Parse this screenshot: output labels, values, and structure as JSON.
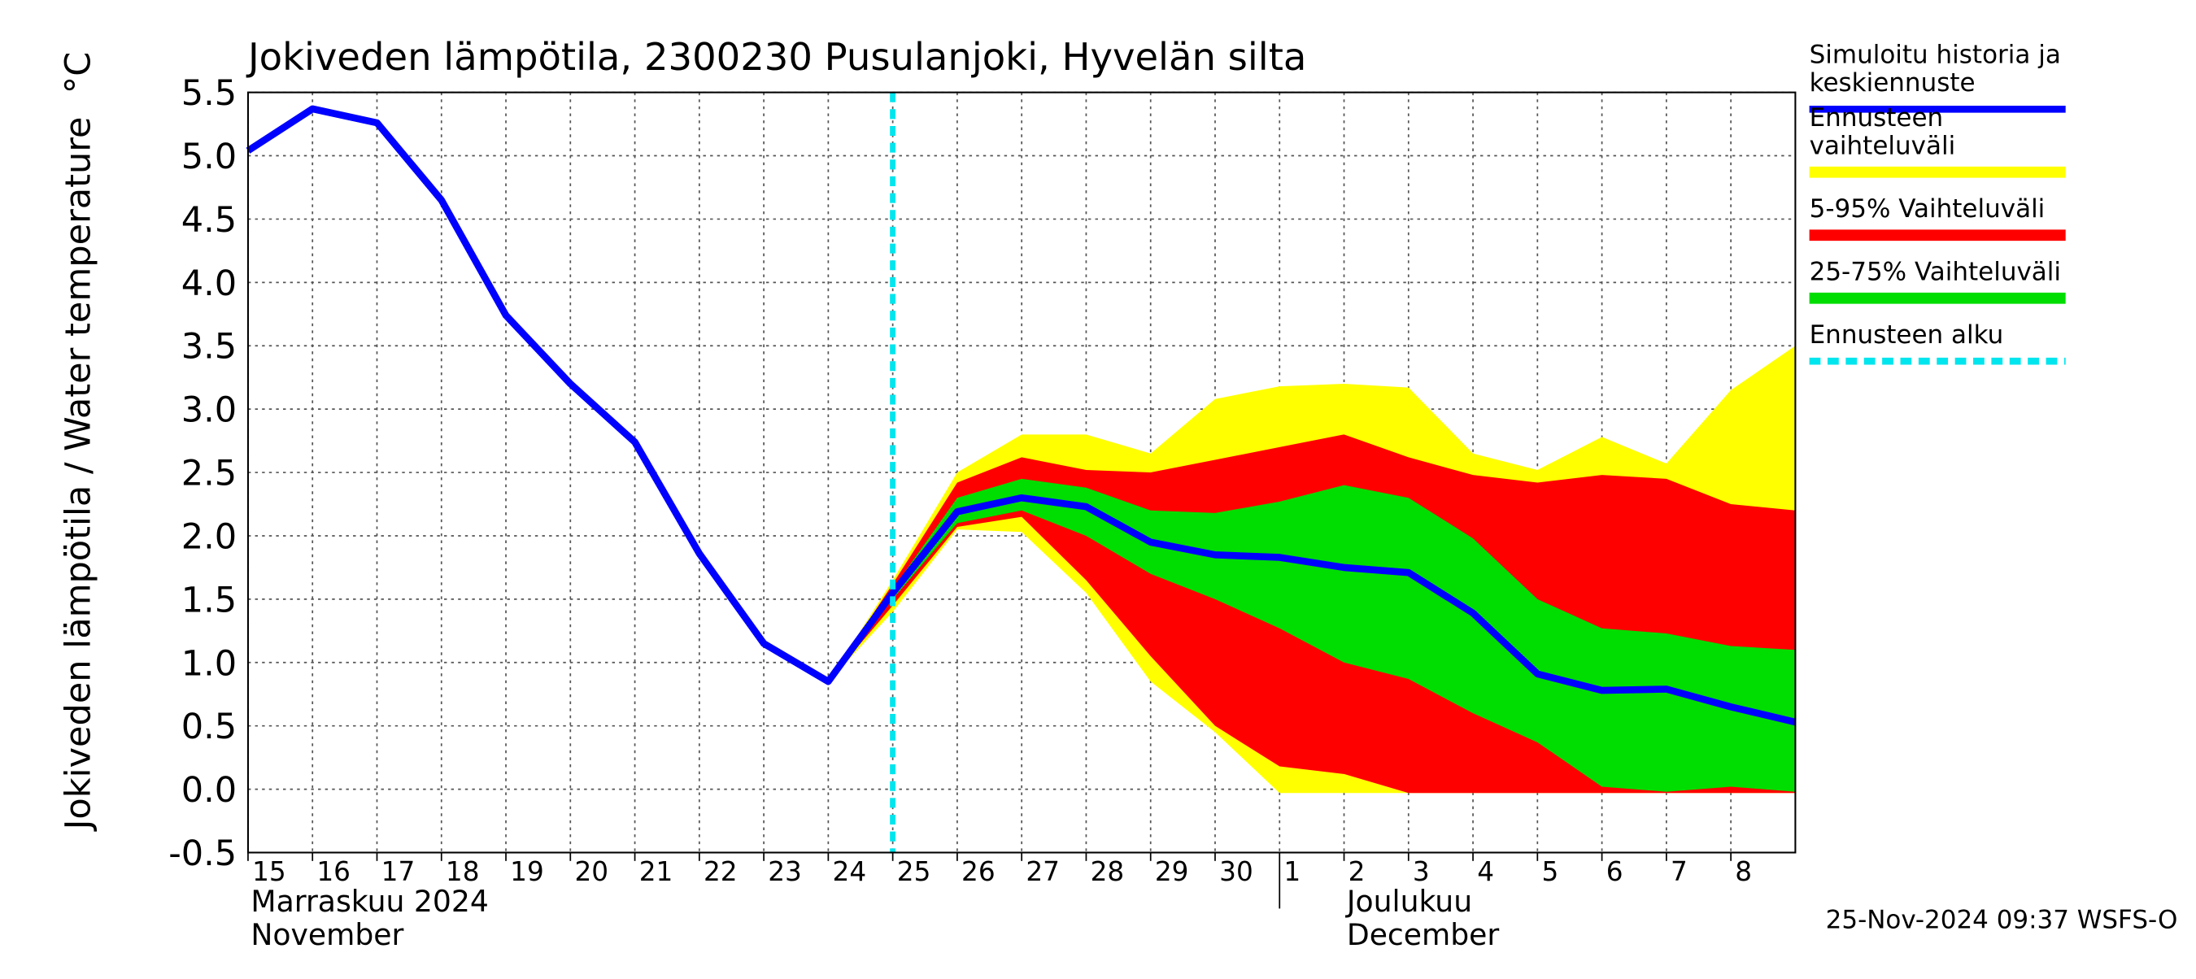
{
  "chart_data": {
    "type": "line",
    "title": "Jokiveden lämpötila, 2300230 Pusulanjoki, Hyvelän silta",
    "ylabel": "Jokiveden lämpötila / Water temperature",
    "yunit": "°C",
    "footer": "25-Nov-2024 09:37 WSFS-O",
    "month_labels": [
      {
        "fi": "Marraskuu 2024",
        "en": "November"
      },
      {
        "fi": "Joulukuu",
        "en": "December"
      }
    ],
    "xlim": [
      "2024-11-15",
      "2024-12-09"
    ],
    "ylim": [
      -0.5,
      5.5
    ],
    "grid": true,
    "yticks": [
      -0.5,
      {
        "value": 0,
        "label": "0.0"
      },
      0.5,
      {
        "value": 1,
        "label": "1.0"
      },
      1.5,
      {
        "value": 2,
        "label": "2.0"
      },
      2.5,
      {
        "value": 3,
        "label": "3.0"
      },
      3.5,
      {
        "value": 4,
        "label": "4.0"
      },
      4.5,
      {
        "value": 5,
        "label": "5.0"
      },
      5.5
    ],
    "xticks": [
      {
        "value": "2024-11-15",
        "label": "15"
      },
      {
        "value": "2024-11-16",
        "label": "16"
      },
      {
        "value": "2024-11-17",
        "label": "17"
      },
      {
        "value": "2024-11-18",
        "label": "18"
      },
      {
        "value": "2024-11-19",
        "label": "19"
      },
      {
        "value": "2024-11-20",
        "label": "20"
      },
      {
        "value": "2024-11-21",
        "label": "21"
      },
      {
        "value": "2024-11-22",
        "label": "22"
      },
      {
        "value": "2024-11-23",
        "label": "23"
      },
      {
        "value": "2024-11-24",
        "label": "24"
      },
      {
        "value": "2024-11-25",
        "label": "25"
      },
      {
        "value": "2024-11-26",
        "label": "26"
      },
      {
        "value": "2024-11-27",
        "label": "27"
      },
      {
        "value": "2024-11-28",
        "label": "28"
      },
      {
        "value": "2024-11-29",
        "label": "29"
      },
      {
        "value": "2024-11-30",
        "label": "30"
      },
      {
        "value": "2024-12-01",
        "label": "1"
      },
      {
        "value": "2024-12-02",
        "label": "2"
      },
      {
        "value": "2024-12-03",
        "label": "3"
      },
      {
        "value": "2024-12-04",
        "label": "4"
      },
      {
        "value": "2024-12-05",
        "label": "5"
      },
      {
        "value": "2024-12-06",
        "label": "6"
      },
      {
        "value": "2024-12-07",
        "label": "7"
      },
      {
        "value": "2024-12-08",
        "label": "8"
      }
    ],
    "x": [
      "2024-11-15",
      "2024-11-16",
      "2024-11-17",
      "2024-11-18",
      "2024-11-19",
      "2024-11-20",
      "2024-11-21",
      "2024-11-22",
      "2024-11-23",
      "2024-11-24",
      "2024-11-25",
      "2024-11-26",
      "2024-11-27",
      "2024-11-28",
      "2024-11-29",
      "2024-11-30",
      "2024-12-01",
      "2024-12-02",
      "2024-12-03",
      "2024-12-04",
      "2024-12-05",
      "2024-12-06",
      "2024-12-07",
      "2024-12-08",
      "2024-12-09"
    ],
    "series": [
      {
        "name": "Simuloitu historia ja keskiennuste",
        "color": "#0000ff",
        "values": [
          5.04,
          5.37,
          5.26,
          4.65,
          3.74,
          3.2,
          2.74,
          1.86,
          1.15,
          0.85,
          1.55,
          2.19,
          2.3,
          2.23,
          1.95,
          1.85,
          1.83,
          1.75,
          1.71,
          1.39,
          0.91,
          0.78,
          0.79,
          0.65,
          0.53
        ]
      },
      {
        "name": "Ennusteen vaihteluväli",
        "color": "#ffff00",
        "upper": [
          null,
          null,
          null,
          null,
          null,
          null,
          null,
          null,
          null,
          0.85,
          1.65,
          2.5,
          2.8,
          2.8,
          2.65,
          3.08,
          3.18,
          3.2,
          3.17,
          2.65,
          2.52,
          2.78,
          2.57,
          3.15,
          3.5
        ],
        "lower": [
          null,
          null,
          null,
          null,
          null,
          null,
          null,
          null,
          null,
          0.85,
          1.4,
          2.05,
          2.03,
          1.55,
          0.85,
          0.45,
          -0.03,
          -0.03,
          -0.03,
          -0.03,
          -0.03,
          -0.03,
          -0.03,
          -0.03,
          -0.03
        ]
      },
      {
        "name": "5-95% Vaihteluväli",
        "color": "#ff0000",
        "upper": [
          null,
          null,
          null,
          null,
          null,
          null,
          null,
          null,
          null,
          0.85,
          1.62,
          2.42,
          2.62,
          2.52,
          2.5,
          2.6,
          2.7,
          2.8,
          2.62,
          2.48,
          2.42,
          2.48,
          2.45,
          2.25,
          2.2
        ],
        "lower": [
          null,
          null,
          null,
          null,
          null,
          null,
          null,
          null,
          null,
          0.85,
          1.45,
          2.07,
          2.15,
          1.65,
          1.05,
          0.5,
          0.18,
          0.12,
          -0.03,
          -0.03,
          -0.03,
          -0.03,
          -0.03,
          -0.03,
          -0.03
        ]
      },
      {
        "name": "25-75% Vaihteluväli",
        "color": "#00dd00",
        "upper": [
          null,
          null,
          null,
          null,
          null,
          null,
          null,
          null,
          null,
          0.85,
          1.58,
          2.3,
          2.45,
          2.38,
          2.2,
          2.18,
          2.27,
          2.4,
          2.3,
          1.98,
          1.5,
          1.27,
          1.23,
          1.13,
          1.1
        ],
        "lower": [
          null,
          null,
          null,
          null,
          null,
          null,
          null,
          null,
          null,
          0.85,
          1.5,
          2.1,
          2.2,
          2.0,
          1.7,
          1.5,
          1.27,
          1.0,
          0.87,
          0.6,
          0.37,
          0.02,
          -0.02,
          0.02,
          -0.02
        ]
      }
    ],
    "forecast_start": {
      "name": "Ennusteen alku",
      "x": "2024-11-25",
      "color": "#00e5ee"
    }
  }
}
